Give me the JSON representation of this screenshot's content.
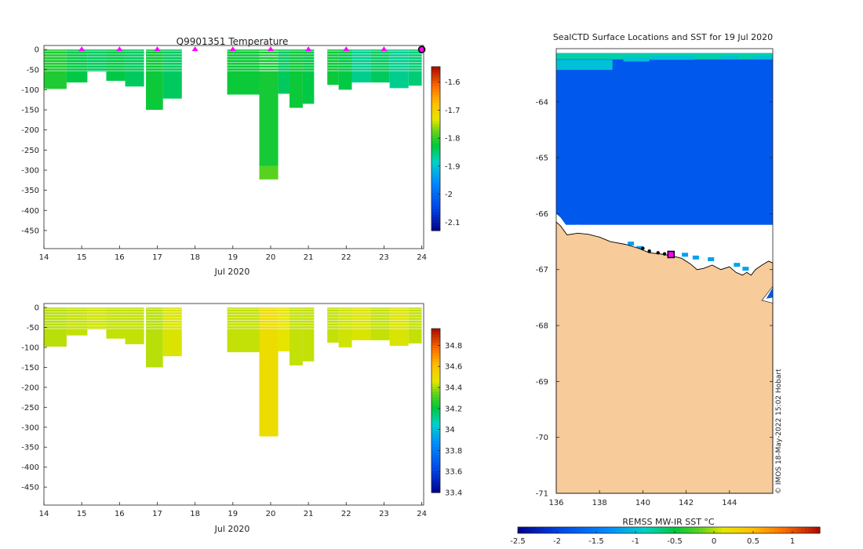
{
  "chart_data": [
    {
      "id": "temp",
      "type": "heatmap",
      "title": "Q9901351  Temperature",
      "xlabel": "Jul 2020",
      "ylabel": "",
      "xlim": [
        14,
        24.05
      ],
      "ylim": [
        -495,
        10
      ],
      "xticks": [
        "14",
        "15",
        "16",
        "17",
        "18",
        "19",
        "20",
        "21",
        "22",
        "23",
        "24"
      ],
      "yticks": [
        "0",
        "-50",
        "-100",
        "-150",
        "-200",
        "-250",
        "-300",
        "-350",
        "-400",
        "-450"
      ],
      "colorbar": {
        "min": -2.13,
        "max": -1.545,
        "ticks": [
          "-1.6",
          "-1.7",
          "-1.8",
          "-1.9",
          "-2",
          "-2.1"
        ],
        "palette": "jet"
      },
      "surface_markers_x": [
        15,
        16,
        17,
        18,
        19,
        20,
        21,
        22,
        23
      ],
      "current_marker": {
        "x": 24,
        "y": 0
      },
      "profiles": [
        {
          "x0": 14.0,
          "x1": 14.6,
          "top": 0,
          "bottom": -98,
          "value": -1.81
        },
        {
          "x0": 14.6,
          "x1": 15.15,
          "top": 0,
          "bottom": -82,
          "value": -1.83
        },
        {
          "x0": 15.15,
          "x1": 15.65,
          "top": 0,
          "bottom": -55,
          "value": -1.84
        },
        {
          "x0": 15.65,
          "x1": 16.15,
          "top": 0,
          "bottom": -78,
          "value": -1.83
        },
        {
          "x0": 16.15,
          "x1": 16.65,
          "top": 0,
          "bottom": -92,
          "value": -1.84
        },
        {
          "x0": 16.7,
          "x1": 17.15,
          "top": 0,
          "bottom": -150,
          "value": -1.82
        },
        {
          "x0": 17.15,
          "x1": 17.65,
          "top": 0,
          "bottom": -122,
          "value": -1.84
        },
        {
          "x0": 18.85,
          "x1": 19.7,
          "top": 0,
          "bottom": -112,
          "value": -1.82
        },
        {
          "x0": 19.7,
          "x1": 20.2,
          "top": 0,
          "bottom": -290,
          "value": -1.815
        },
        {
          "x0": 19.7,
          "x1": 20.2,
          "top": -290,
          "bottom": -323,
          "value": -1.78
        },
        {
          "x0": 20.2,
          "x1": 20.5,
          "top": 0,
          "bottom": -110,
          "value": -1.84
        },
        {
          "x0": 20.5,
          "x1": 20.85,
          "top": 0,
          "bottom": -145,
          "value": -1.82
        },
        {
          "x0": 20.85,
          "x1": 21.15,
          "top": 0,
          "bottom": -135,
          "value": -1.83
        },
        {
          "x0": 21.5,
          "x1": 21.8,
          "top": 0,
          "bottom": -88,
          "value": -1.82
        },
        {
          "x0": 21.8,
          "x1": 22.15,
          "top": 0,
          "bottom": -100,
          "value": -1.83
        },
        {
          "x0": 22.15,
          "x1": 22.65,
          "top": 0,
          "bottom": -82,
          "value": -1.86
        },
        {
          "x0": 22.65,
          "x1": 23.15,
          "top": 0,
          "bottom": -82,
          "value": -1.84
        },
        {
          "x0": 23.15,
          "x1": 23.65,
          "top": 0,
          "bottom": -96,
          "value": -1.86
        },
        {
          "x0": 23.65,
          "x1": 24.0,
          "top": 0,
          "bottom": -90,
          "value": -1.85
        }
      ]
    },
    {
      "id": "sal",
      "type": "heatmap",
      "title": "",
      "xlabel": "Jul 2020",
      "ylabel": "",
      "xlim": [
        14,
        24.05
      ],
      "ylim": [
        -495,
        10
      ],
      "xticks": [
        "14",
        "15",
        "16",
        "17",
        "18",
        "19",
        "20",
        "21",
        "22",
        "23",
        "24"
      ],
      "yticks": [
        "0",
        "-50",
        "-100",
        "-150",
        "-200",
        "-250",
        "-300",
        "-350",
        "-400",
        "-450"
      ],
      "colorbar": {
        "min": 33.4,
        "max": 34.96,
        "ticks": [
          "34.8",
          "34.6",
          "34.4",
          "34.2",
          "34",
          "33.8",
          "33.6",
          "33.4"
        ],
        "palette": "jet"
      },
      "profiles": [
        {
          "x0": 14.0,
          "x1": 14.6,
          "top": 0,
          "bottom": -98,
          "value": 34.42
        },
        {
          "x0": 14.6,
          "x1": 15.15,
          "top": 0,
          "bottom": -70,
          "value": 34.43
        },
        {
          "x0": 15.15,
          "x1": 15.65,
          "top": 0,
          "bottom": -55,
          "value": 34.44
        },
        {
          "x0": 15.65,
          "x1": 16.15,
          "top": 0,
          "bottom": -78,
          "value": 34.43
        },
        {
          "x0": 16.15,
          "x1": 16.65,
          "top": 0,
          "bottom": -92,
          "value": 34.43
        },
        {
          "x0": 16.7,
          "x1": 17.15,
          "top": 0,
          "bottom": -150,
          "value": 34.42
        },
        {
          "x0": 17.15,
          "x1": 17.65,
          "top": 0,
          "bottom": -122,
          "value": 34.45
        },
        {
          "x0": 18.85,
          "x1": 19.7,
          "top": 0,
          "bottom": -112,
          "value": 34.43
        },
        {
          "x0": 19.7,
          "x1": 20.2,
          "top": 0,
          "bottom": -323,
          "value": 34.5
        },
        {
          "x0": 20.2,
          "x1": 20.5,
          "top": 0,
          "bottom": -110,
          "value": 34.47
        },
        {
          "x0": 20.5,
          "x1": 20.85,
          "top": 0,
          "bottom": -145,
          "value": 34.43
        },
        {
          "x0": 20.85,
          "x1": 21.15,
          "top": 0,
          "bottom": -135,
          "value": 34.43
        },
        {
          "x0": 21.5,
          "x1": 21.8,
          "top": 0,
          "bottom": -88,
          "value": 34.43
        },
        {
          "x0": 21.8,
          "x1": 22.15,
          "top": 0,
          "bottom": -100,
          "value": 34.44
        },
        {
          "x0": 22.15,
          "x1": 22.65,
          "top": 0,
          "bottom": -82,
          "value": 34.45
        },
        {
          "x0": 22.65,
          "x1": 23.15,
          "top": 0,
          "bottom": -82,
          "value": 34.43
        },
        {
          "x0": 23.15,
          "x1": 23.65,
          "top": 0,
          "bottom": -96,
          "value": 34.45
        },
        {
          "x0": 23.65,
          "x1": 24.0,
          "top": 0,
          "bottom": -90,
          "value": 34.43
        }
      ]
    },
    {
      "id": "map",
      "type": "heatmap",
      "title": "SealCTD Surface Locations and SST for 19 Jul 2020",
      "xlabel": "",
      "ylabel": "",
      "xlim": [
        136,
        146
      ],
      "ylim": [
        -71,
        -63.05
      ],
      "xticks": [
        "136",
        "138",
        "140",
        "142",
        "144"
      ],
      "yticks": [
        "-64",
        "-65",
        "-66",
        "-67",
        "-68",
        "-69",
        "-70",
        "-71"
      ],
      "ocean_sst_value": -1.8,
      "ice_edge_sst_value": -0.8,
      "land_color": "#f7cb9a",
      "coastline": [
        [
          136,
          -66.15
        ],
        [
          136.2,
          -66.22
        ],
        [
          136.5,
          -66.38
        ],
        [
          137,
          -66.35
        ],
        [
          137.5,
          -66.37
        ],
        [
          138,
          -66.42
        ],
        [
          138.5,
          -66.5
        ],
        [
          139.2,
          -66.55
        ],
        [
          139.8,
          -66.62
        ],
        [
          140.3,
          -66.7
        ],
        [
          140.8,
          -66.72
        ],
        [
          141.3,
          -66.75
        ],
        [
          141.8,
          -66.8
        ],
        [
          142.2,
          -66.9
        ],
        [
          142.5,
          -67.0
        ],
        [
          142.8,
          -66.98
        ],
        [
          143.2,
          -66.92
        ],
        [
          143.6,
          -67.0
        ],
        [
          144.0,
          -66.95
        ],
        [
          144.3,
          -67.05
        ],
        [
          144.6,
          -67.1
        ],
        [
          144.8,
          -67.05
        ],
        [
          145.0,
          -67.1
        ],
        [
          145.2,
          -67.0
        ],
        [
          145.5,
          -66.92
        ],
        [
          145.8,
          -66.85
        ],
        [
          146,
          -66.88
        ]
      ],
      "track": [
        [
          140.0,
          -66.62
        ],
        [
          140.3,
          -66.67
        ],
        [
          140.7,
          -66.7
        ],
        [
          141.0,
          -66.72
        ],
        [
          141.3,
          -66.73
        ]
      ],
      "current_position": {
        "lon": 141.3,
        "lat": -66.73
      },
      "colorbar": {
        "label": "REMSS MW-IR SST °C",
        "min": -2.5,
        "max": 1.35,
        "ticks": [
          "-2.5",
          "-2",
          "-1.5",
          "-1",
          "-0.5",
          "0",
          "0.5",
          "1"
        ],
        "palette": "jet"
      }
    }
  ],
  "credit": "© IMOS 18-May-2022 15:02 Hobart"
}
